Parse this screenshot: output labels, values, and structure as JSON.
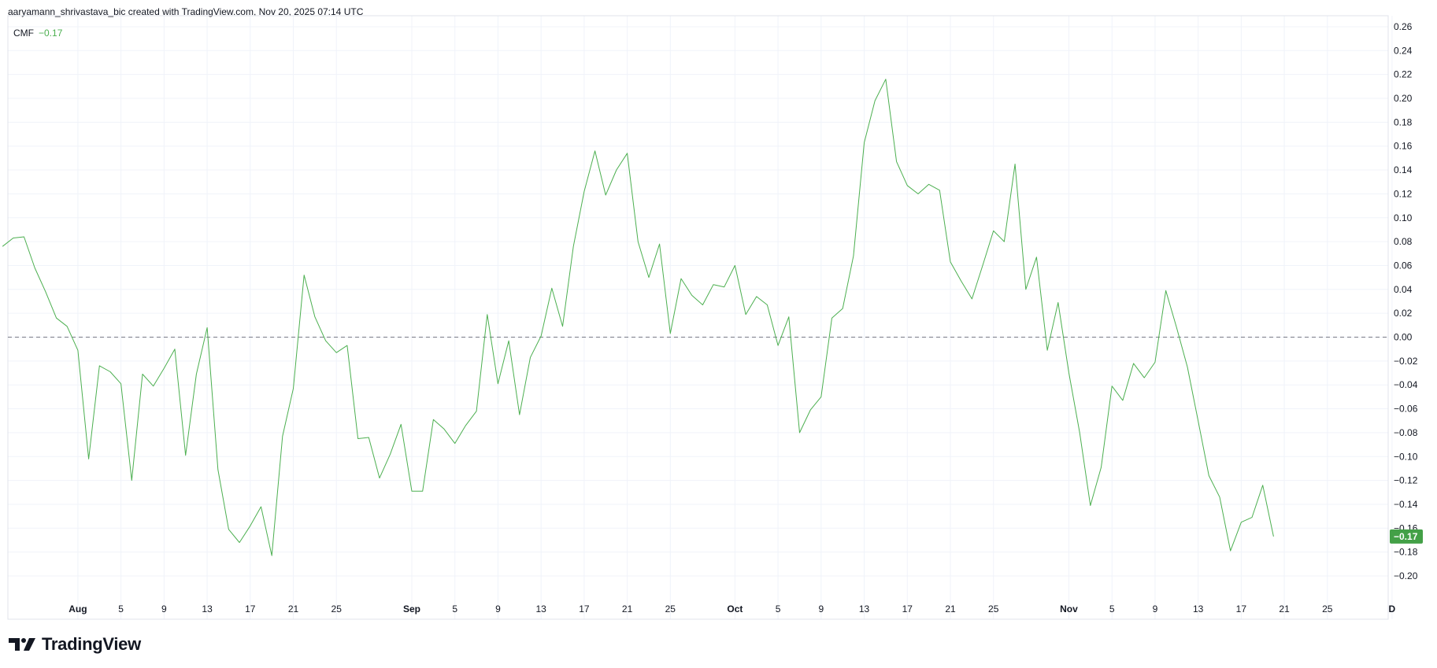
{
  "header": {
    "text": "aaryamann_shrivastava_bic created with TradingView.com, Nov 20, 2025 07:14 UTC"
  },
  "legend": {
    "indicator": "CMF",
    "value": "−0.17"
  },
  "brand": {
    "name": "TradingView",
    "logo_icon": "tradingview-logo-icon"
  },
  "colors": {
    "line": "#4caf50",
    "last_label_bg": "#43a047",
    "zero_line": "#787b86",
    "grid": "#f0f3fa"
  },
  "chart_data": {
    "type": "line",
    "title": "",
    "xlabel": "",
    "ylabel": "",
    "ylim": [
      -0.21,
      0.26
    ],
    "y_ticks": [
      0.26,
      0.24,
      0.22,
      0.2,
      0.18,
      0.16,
      0.14,
      0.12,
      0.1,
      0.08,
      0.06,
      0.04,
      0.02,
      0.0,
      -0.02,
      -0.04,
      -0.06,
      -0.08,
      -0.1,
      -0.12,
      -0.14,
      -0.16,
      -0.18,
      -0.2
    ],
    "y_tick_labels": [
      "0.26",
      "0.24",
      "0.22",
      "0.20",
      "0.18",
      "0.16",
      "0.14",
      "0.12",
      "0.10",
      "0.08",
      "0.06",
      "0.04",
      "0.02",
      "0.00",
      "−0.02",
      "−0.04",
      "−0.06",
      "−0.08",
      "−0.10",
      "−0.12",
      "−0.14",
      "−0.16",
      "−0.18",
      "−0.20"
    ],
    "x_ticks": [
      {
        "label": "Aug",
        "date": "2025-08-01",
        "month": true
      },
      {
        "label": "5",
        "date": "2025-08-05"
      },
      {
        "label": "9",
        "date": "2025-08-09"
      },
      {
        "label": "13",
        "date": "2025-08-13"
      },
      {
        "label": "17",
        "date": "2025-08-17"
      },
      {
        "label": "21",
        "date": "2025-08-21"
      },
      {
        "label": "25",
        "date": "2025-08-25"
      },
      {
        "label": "Sep",
        "date": "2025-09-01",
        "month": true
      },
      {
        "label": "5",
        "date": "2025-09-05"
      },
      {
        "label": "9",
        "date": "2025-09-09"
      },
      {
        "label": "13",
        "date": "2025-09-13"
      },
      {
        "label": "17",
        "date": "2025-09-17"
      },
      {
        "label": "21",
        "date": "2025-09-21"
      },
      {
        "label": "25",
        "date": "2025-09-25"
      },
      {
        "label": "Oct",
        "date": "2025-10-01",
        "month": true
      },
      {
        "label": "5",
        "date": "2025-10-05"
      },
      {
        "label": "9",
        "date": "2025-10-09"
      },
      {
        "label": "13",
        "date": "2025-10-13"
      },
      {
        "label": "17",
        "date": "2025-10-17"
      },
      {
        "label": "21",
        "date": "2025-10-21"
      },
      {
        "label": "25",
        "date": "2025-10-25"
      },
      {
        "label": "Nov",
        "date": "2025-11-01",
        "month": true
      },
      {
        "label": "5",
        "date": "2025-11-05"
      },
      {
        "label": "9",
        "date": "2025-11-09"
      },
      {
        "label": "13",
        "date": "2025-11-13"
      },
      {
        "label": "17",
        "date": "2025-11-17"
      },
      {
        "label": "21",
        "date": "2025-11-21"
      },
      {
        "label": "25",
        "date": "2025-11-25"
      },
      {
        "label": "D",
        "date": "2025-12-01",
        "month": true
      }
    ],
    "zero_line": 0.0,
    "last_value_label": "−0.17",
    "series": [
      {
        "name": "CMF",
        "points": [
          [
            "2025-07-25",
            0.076
          ],
          [
            "2025-07-26",
            0.083
          ],
          [
            "2025-07-27",
            0.084
          ],
          [
            "2025-07-28",
            0.058
          ],
          [
            "2025-07-29",
            0.038
          ],
          [
            "2025-07-30",
            0.016
          ],
          [
            "2025-07-31",
            0.009
          ],
          [
            "2025-08-01",
            -0.011
          ],
          [
            "2025-08-02",
            -0.102
          ],
          [
            "2025-08-03",
            -0.024
          ],
          [
            "2025-08-04",
            -0.029
          ],
          [
            "2025-08-05",
            -0.039
          ],
          [
            "2025-08-06",
            -0.12
          ],
          [
            "2025-08-07",
            -0.031
          ],
          [
            "2025-08-08",
            -0.041
          ],
          [
            "2025-08-09",
            -0.026
          ],
          [
            "2025-08-10",
            -0.01
          ],
          [
            "2025-08-11",
            -0.099
          ],
          [
            "2025-08-12",
            -0.031
          ],
          [
            "2025-08-13",
            0.008
          ],
          [
            "2025-08-14",
            -0.111
          ],
          [
            "2025-08-15",
            -0.161
          ],
          [
            "2025-08-16",
            -0.172
          ],
          [
            "2025-08-17",
            -0.158
          ],
          [
            "2025-08-18",
            -0.142
          ],
          [
            "2025-08-19",
            -0.183
          ],
          [
            "2025-08-20",
            -0.083
          ],
          [
            "2025-08-21",
            -0.043
          ],
          [
            "2025-08-22",
            0.052
          ],
          [
            "2025-08-23",
            0.017
          ],
          [
            "2025-08-24",
            -0.003
          ],
          [
            "2025-08-25",
            -0.013
          ],
          [
            "2025-08-26",
            -0.007
          ],
          [
            "2025-08-27",
            -0.085
          ],
          [
            "2025-08-28",
            -0.084
          ],
          [
            "2025-08-29",
            -0.118
          ],
          [
            "2025-08-30",
            -0.098
          ],
          [
            "2025-08-31",
            -0.073
          ],
          [
            "2025-09-01",
            -0.129
          ],
          [
            "2025-09-02",
            -0.129
          ],
          [
            "2025-09-03",
            -0.069
          ],
          [
            "2025-09-04",
            -0.077
          ],
          [
            "2025-09-05",
            -0.089
          ],
          [
            "2025-09-06",
            -0.074
          ],
          [
            "2025-09-07",
            -0.062
          ],
          [
            "2025-09-08",
            0.019
          ],
          [
            "2025-09-09",
            -0.039
          ],
          [
            "2025-09-10",
            -0.003
          ],
          [
            "2025-09-11",
            -0.065
          ],
          [
            "2025-09-12",
            -0.017
          ],
          [
            "2025-09-13",
            0.001
          ],
          [
            "2025-09-14",
            0.041
          ],
          [
            "2025-09-15",
            0.009
          ],
          [
            "2025-09-16",
            0.076
          ],
          [
            "2025-09-17",
            0.122
          ],
          [
            "2025-09-18",
            0.156
          ],
          [
            "2025-09-19",
            0.119
          ],
          [
            "2025-09-20",
            0.14
          ],
          [
            "2025-09-21",
            0.154
          ],
          [
            "2025-09-22",
            0.08
          ],
          [
            "2025-09-23",
            0.05
          ],
          [
            "2025-09-24",
            0.078
          ],
          [
            "2025-09-25",
            0.003
          ],
          [
            "2025-09-26",
            0.049
          ],
          [
            "2025-09-27",
            0.035
          ],
          [
            "2025-09-28",
            0.027
          ],
          [
            "2025-09-29",
            0.044
          ],
          [
            "2025-09-30",
            0.042
          ],
          [
            "2025-10-01",
            0.06
          ],
          [
            "2025-10-02",
            0.019
          ],
          [
            "2025-10-03",
            0.034
          ],
          [
            "2025-10-04",
            0.027
          ],
          [
            "2025-10-05",
            -0.007
          ],
          [
            "2025-10-06",
            0.017
          ],
          [
            "2025-10-07",
            -0.08
          ],
          [
            "2025-10-08",
            -0.061
          ],
          [
            "2025-10-09",
            -0.05
          ],
          [
            "2025-10-10",
            0.016
          ],
          [
            "2025-10-11",
            0.024
          ],
          [
            "2025-10-12",
            0.068
          ],
          [
            "2025-10-13",
            0.163
          ],
          [
            "2025-10-14",
            0.198
          ],
          [
            "2025-10-15",
            0.216
          ],
          [
            "2025-10-16",
            0.147
          ],
          [
            "2025-10-17",
            0.127
          ],
          [
            "2025-10-18",
            0.12
          ],
          [
            "2025-10-19",
            0.128
          ],
          [
            "2025-10-20",
            0.123
          ],
          [
            "2025-10-21",
            0.063
          ],
          [
            "2025-10-22",
            0.047
          ],
          [
            "2025-10-23",
            0.032
          ],
          [
            "2025-10-24",
            0.06
          ],
          [
            "2025-10-25",
            0.089
          ],
          [
            "2025-10-26",
            0.08
          ],
          [
            "2025-10-27",
            0.145
          ],
          [
            "2025-10-28",
            0.04
          ],
          [
            "2025-10-29",
            0.067
          ],
          [
            "2025-10-30",
            -0.011
          ],
          [
            "2025-10-31",
            0.029
          ],
          [
            "2025-11-01",
            -0.03
          ],
          [
            "2025-11-02",
            -0.08
          ],
          [
            "2025-11-03",
            -0.141
          ],
          [
            "2025-11-04",
            -0.109
          ],
          [
            "2025-11-05",
            -0.041
          ],
          [
            "2025-11-06",
            -0.053
          ],
          [
            "2025-11-07",
            -0.022
          ],
          [
            "2025-11-08",
            -0.034
          ],
          [
            "2025-11-09",
            -0.021
          ],
          [
            "2025-11-10",
            0.039
          ],
          [
            "2025-11-11",
            0.008
          ],
          [
            "2025-11-12",
            -0.025
          ],
          [
            "2025-11-13",
            -0.07
          ],
          [
            "2025-11-14",
            -0.116
          ],
          [
            "2025-11-15",
            -0.134
          ],
          [
            "2025-11-16",
            -0.179
          ],
          [
            "2025-11-17",
            -0.155
          ],
          [
            "2025-11-18",
            -0.151
          ],
          [
            "2025-11-19",
            -0.124
          ],
          [
            "2025-11-20",
            -0.167
          ]
        ]
      }
    ]
  }
}
